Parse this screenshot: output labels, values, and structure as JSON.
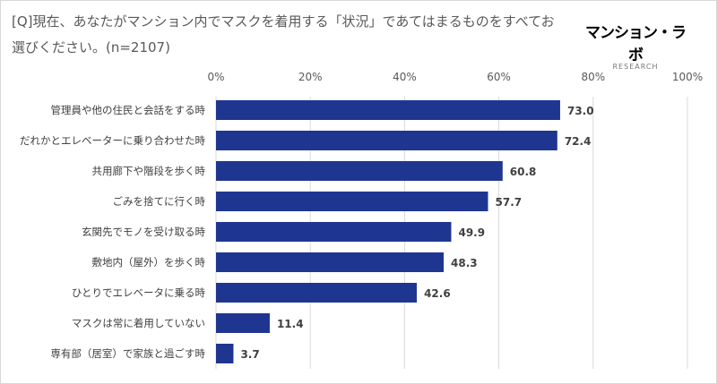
{
  "chart_data": {
    "type": "bar",
    "orientation": "horizontal",
    "title": "[Q]現在、あなたがマンション内でマスクを着用する「状況」であてはまるものをすべてお選びください。(n=2107)",
    "categories": [
      "管理員や他の住民と会話をする時",
      "だれかとエレベーターに乗り合わせた時",
      "共用廊下や階段を歩く時",
      "ごみを捨てに行く時",
      "玄関先でモノを受け取る時",
      "敷地内（屋外）を歩く時",
      "ひとりでエレベータに乗る時",
      "マスクは常に着用していない",
      "専有部（居室）で家族と過ごす時"
    ],
    "values": [
      73.0,
      72.4,
      60.8,
      57.7,
      49.9,
      48.3,
      42.6,
      11.4,
      3.7
    ],
    "value_labels": [
      "73.0",
      "72.4",
      "60.8",
      "57.7",
      "49.9",
      "48.3",
      "42.6",
      "11.4",
      "3.7"
    ],
    "xlim": [
      0,
      100
    ],
    "xticks": [
      "0%",
      "20%",
      "40%",
      "60%",
      "80%",
      "100%"
    ],
    "grid": true,
    "bar_color": "#1f3691",
    "xlabel": "",
    "ylabel": ""
  },
  "logo": {
    "main": "マンション・ラボ",
    "sub": "RESEARCH"
  }
}
